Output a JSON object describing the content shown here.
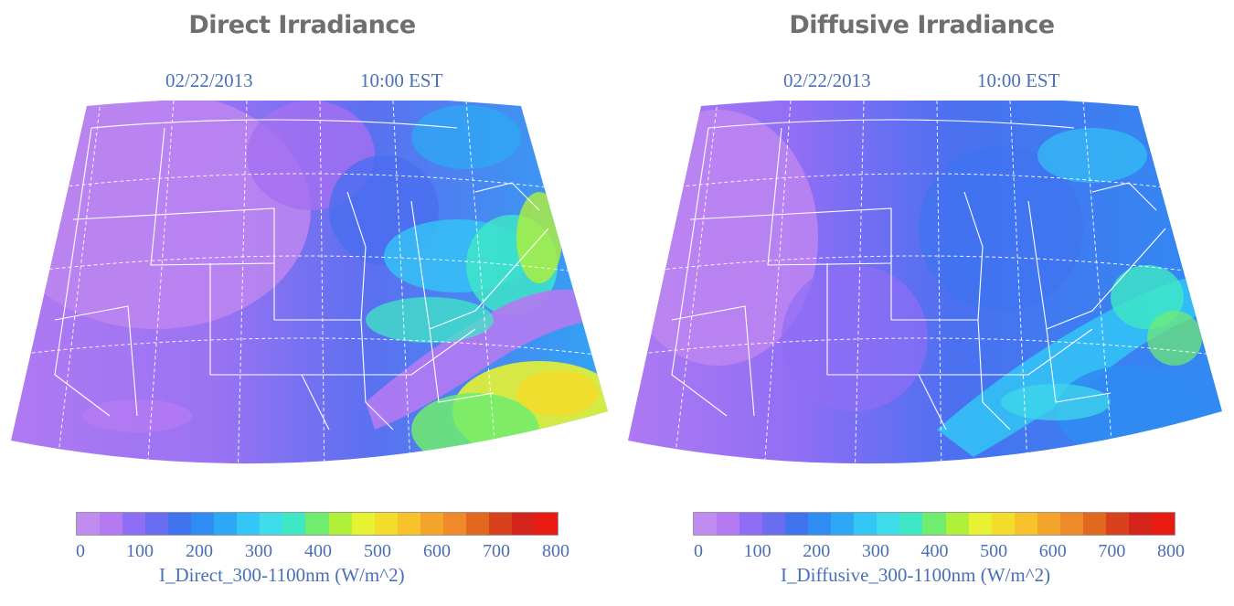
{
  "colors": {
    "scale": [
      "#c08cf0",
      "#b47af2",
      "#8f6ef5",
      "#6a6cf2",
      "#3f73ef",
      "#2f8cf2",
      "#2ea8f5",
      "#33c6f6",
      "#3fdcea",
      "#3fe8c4",
      "#70ec6e",
      "#b0f03a",
      "#e6f232",
      "#f4dc2a",
      "#f7c22a",
      "#f3a52a",
      "#ef8a28",
      "#e2681f",
      "#d9401c",
      "#d4231a",
      "#e81a12"
    ]
  },
  "panels": [
    {
      "id": "direct",
      "title": "Direct Irradiance",
      "date": "02/22/2013",
      "time": "10:00 EST",
      "map_label": "Map of direct irradiance over continental United States",
      "colorbar": {
        "ticks": [
          "0",
          "100",
          "200",
          "300",
          "400",
          "500",
          "600",
          "700",
          "800"
        ],
        "label": "I_Direct_300-1100nm (W/m^2)"
      }
    },
    {
      "id": "diffusive",
      "title": "Diffusive Irradiance",
      "date": "02/22/2013",
      "time": "10:00 EST",
      "map_label": "Map of diffusive irradiance over continental United States",
      "colorbar": {
        "ticks": [
          "0",
          "100",
          "200",
          "300",
          "400",
          "500",
          "600",
          "700",
          "800"
        ],
        "label": "I_Diffusive_300-1100nm (W/m^2)"
      }
    }
  ]
}
